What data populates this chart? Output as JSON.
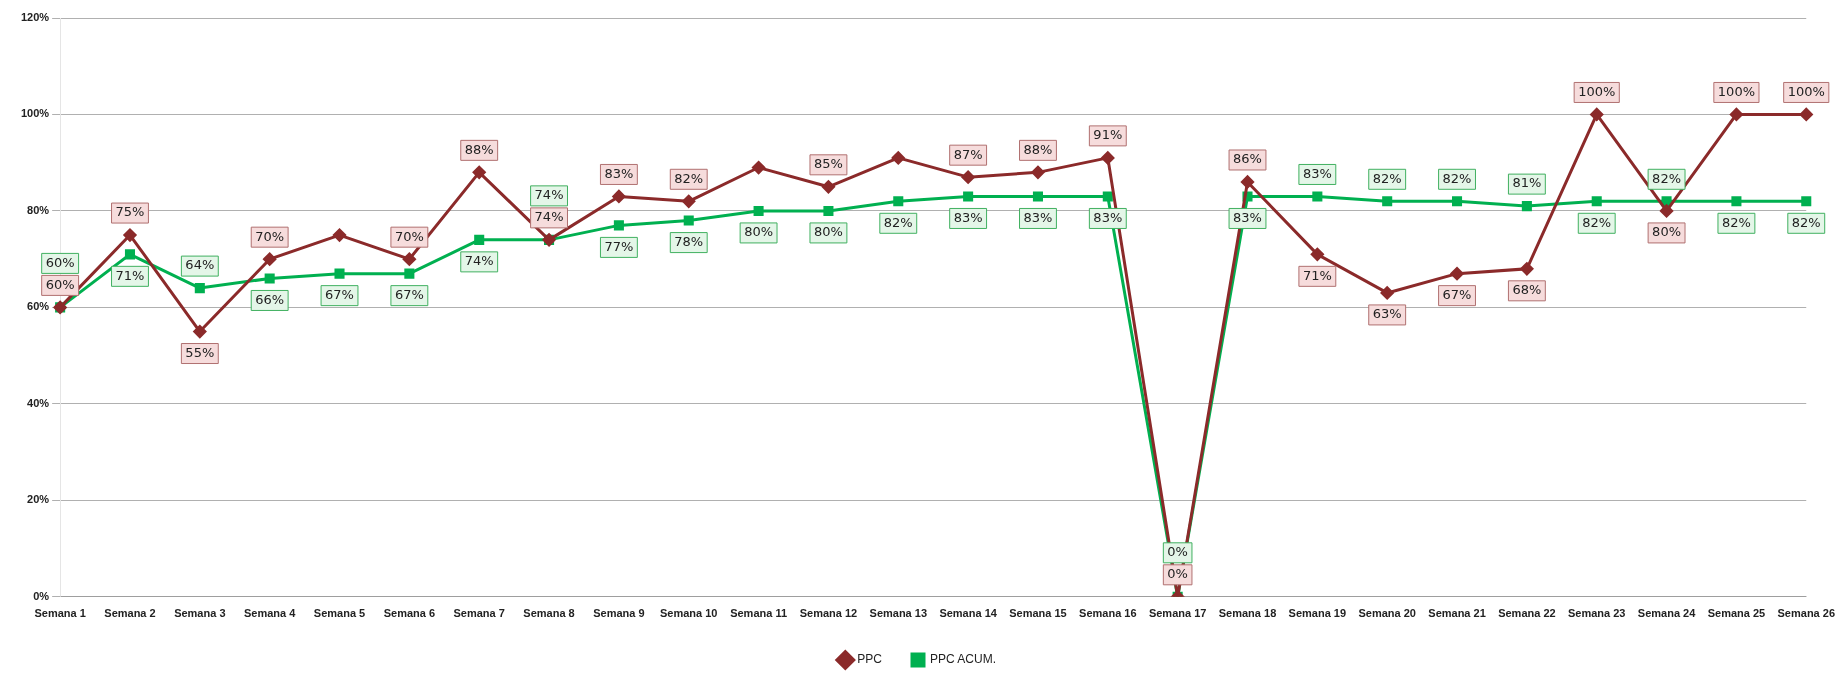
{
  "chart_data": {
    "type": "line",
    "categories": [
      "Semana 1",
      "Semana 2",
      "Semana 3",
      "Semana 4",
      "Semana 5",
      "Semana 6",
      "Semana 7",
      "Semana 8",
      "Semana 9",
      "Semana 10",
      "Semana 11",
      "Semana 12",
      "Semana 13",
      "Semana 14",
      "Semana 15",
      "Semana 16",
      "Semana 17",
      "Semana 18",
      "Semana 19",
      "Semana 20",
      "Semana 21",
      "Semana 22",
      "Semana 23",
      "Semana 24",
      "Semana 25",
      "Semana 26"
    ],
    "series": [
      {
        "name": "PPC",
        "color": "#8b2a2a",
        "marker": "diamond",
        "values": [
          60,
          75,
          55,
          70,
          75,
          70,
          88,
          74,
          83,
          82,
          89,
          85,
          91,
          87,
          88,
          91,
          0,
          86,
          71,
          63,
          67,
          68,
          100,
          80,
          100,
          100
        ],
        "value_labels": [
          "60%",
          "75%",
          "55%",
          "70%",
          null,
          "70%",
          "88%",
          "74%",
          "83%",
          "82%",
          null,
          "85%",
          null,
          "87%",
          "88%",
          "91%",
          "0%",
          "86%",
          "71%",
          "63%",
          "67%",
          "68%",
          "100%",
          "80%",
          "100%",
          "100%"
        ]
      },
      {
        "name": "PPC ACUM.",
        "color": "#00b050",
        "marker": "square",
        "values": [
          60,
          71,
          64,
          66,
          67,
          67,
          74,
          74,
          77,
          78,
          80,
          80,
          82,
          83,
          83,
          83,
          0,
          83,
          83,
          82,
          82,
          81,
          82,
          82,
          82,
          82
        ],
        "value_labels": [
          "60%",
          "71%",
          "64%",
          "66%",
          "67%",
          "67%",
          "74%",
          "74%",
          "77%",
          "78%",
          "80%",
          "80%",
          "82%",
          "83%",
          "83%",
          "83%",
          "0%",
          "83%",
          "83%",
          "82%",
          "82%",
          "81%",
          "82%",
          "82%",
          "82%",
          "82%"
        ]
      }
    ],
    "ylim": [
      0,
      120
    ],
    "yticks": [
      {
        "value": 0,
        "label": "0%"
      },
      {
        "value": 20,
        "label": "20%"
      },
      {
        "value": 40,
        "label": "40%"
      },
      {
        "value": 60,
        "label": "60%"
      },
      {
        "value": 80,
        "label": "80%"
      },
      {
        "value": 100,
        "label": "100%"
      },
      {
        "value": 120,
        "label": "120%"
      }
    ],
    "grid": "y",
    "legend": "bottom",
    "line_style": "solid"
  }
}
